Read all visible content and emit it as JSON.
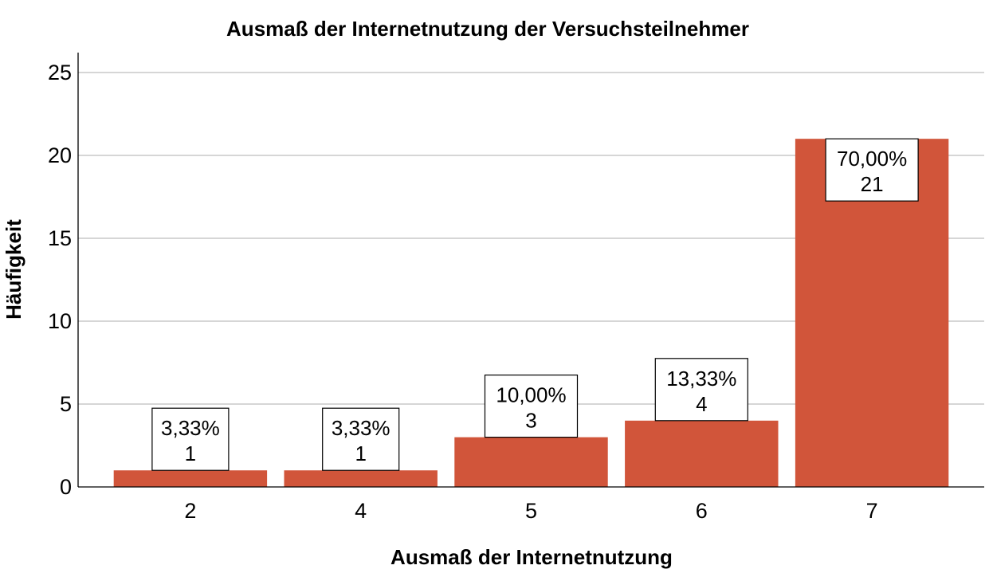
{
  "chart_data": {
    "type": "bar",
    "title": "Ausmaß der Internetnutzung der Versuchsteilnehmer",
    "xlabel": "Ausmaß der Internetnutzung",
    "ylabel": "Häufigkeit",
    "categories": [
      "2",
      "4",
      "5",
      "6",
      "7"
    ],
    "values": [
      1,
      1,
      3,
      4,
      21
    ],
    "percent_labels": [
      "3,33%",
      "3,33%",
      "10,00%",
      "13,33%",
      "70,00%"
    ],
    "count_labels": [
      "1",
      "1",
      "3",
      "4",
      "21"
    ],
    "yticks": [
      0,
      5,
      10,
      15,
      20,
      25
    ],
    "ytick_labels": [
      "0",
      "5",
      "10",
      "15",
      "20",
      "25"
    ],
    "ylim": [
      0,
      26.2
    ],
    "grid": true,
    "bar_color": "#d1553a"
  }
}
